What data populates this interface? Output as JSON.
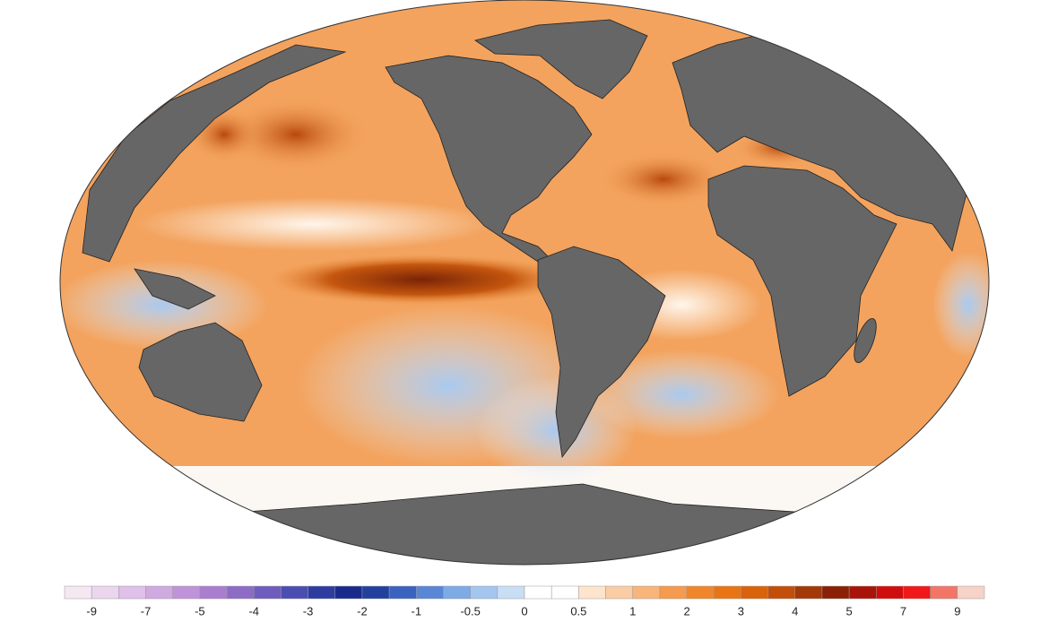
{
  "colorbar": {
    "ticks": [
      -9,
      -7,
      -5,
      -4,
      -3,
      -2,
      -1,
      -0.5,
      0,
      0.5,
      1,
      2,
      3,
      4,
      5,
      7,
      9
    ],
    "colors": [
      "#f6e8f2",
      "#ecd6ee",
      "#dfc0e8",
      "#d0a9e1",
      "#bf93d9",
      "#aa7ecf",
      "#8d6cc6",
      "#6e5dbc",
      "#4c4db0",
      "#2e3ca1",
      "#1a2a8c",
      "#23409f",
      "#3a63bf",
      "#5a86d6",
      "#7eaae6",
      "#a3c6ef",
      "#c9def5",
      "#ffffff",
      "#ffffff",
      "#fde4cc",
      "#fbcda4",
      "#f8b47a",
      "#f59a4e",
      "#f0862c",
      "#ea7414",
      "#d9620c",
      "#c24e0a",
      "#a33808",
      "#8a2006",
      "#a8140a",
      "#d00d0d",
      "#f01818",
      "#f27566",
      "#f7d2c8"
    ]
  }
}
